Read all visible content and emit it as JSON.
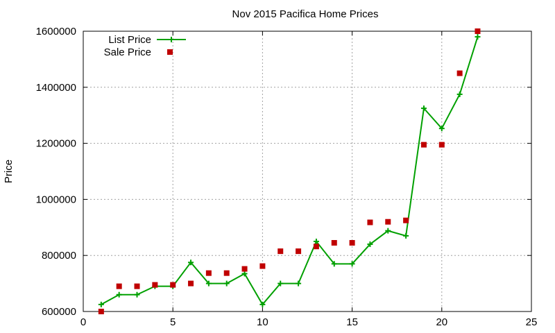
{
  "chart_data": {
    "type": "line",
    "title": "Nov 2015 Pacifica Home Prices",
    "xlabel": "",
    "ylabel": "Price",
    "xlim": [
      0,
      25
    ],
    "ylim": [
      600000,
      1600000
    ],
    "x_ticks": [
      0,
      5,
      10,
      15,
      20,
      25
    ],
    "y_ticks": [
      600000,
      800000,
      1000000,
      1200000,
      1400000,
      1600000
    ],
    "x_tick_labels": [
      "0",
      "5",
      "10",
      "15",
      "20",
      "25"
    ],
    "y_tick_labels": [
      "600000",
      "800000",
      "1000000",
      "1200000",
      "1400000",
      "1600000"
    ],
    "grid": true,
    "legend_position": "top-left",
    "series": [
      {
        "name": "List Price",
        "style": "line-with-plus-markers",
        "color": "#00a000",
        "x": [
          1,
          2,
          3,
          4,
          5,
          6,
          7,
          8,
          9,
          10,
          11,
          12,
          13,
          14,
          15,
          16,
          17,
          18,
          19,
          20,
          21,
          22
        ],
        "values": [
          625000,
          660000,
          660000,
          690000,
          690000,
          775000,
          700000,
          700000,
          735000,
          625000,
          700000,
          700000,
          850000,
          770000,
          770000,
          840000,
          888000,
          870000,
          1325000,
          1253000,
          1375000,
          1580000
        ]
      },
      {
        "name": "Sale Price",
        "style": "square-markers",
        "color": "#c00000",
        "x": [
          1,
          2,
          3,
          4,
          5,
          6,
          7,
          8,
          9,
          10,
          11,
          12,
          13,
          14,
          15,
          16,
          17,
          18,
          19,
          20,
          21,
          22
        ],
        "values": [
          600000,
          690000,
          690000,
          695000,
          695000,
          700000,
          737000,
          737000,
          752000,
          762000,
          815000,
          815000,
          832000,
          845000,
          845000,
          918000,
          920000,
          925000,
          1195000,
          1195000,
          1450000,
          1600000
        ]
      }
    ]
  }
}
